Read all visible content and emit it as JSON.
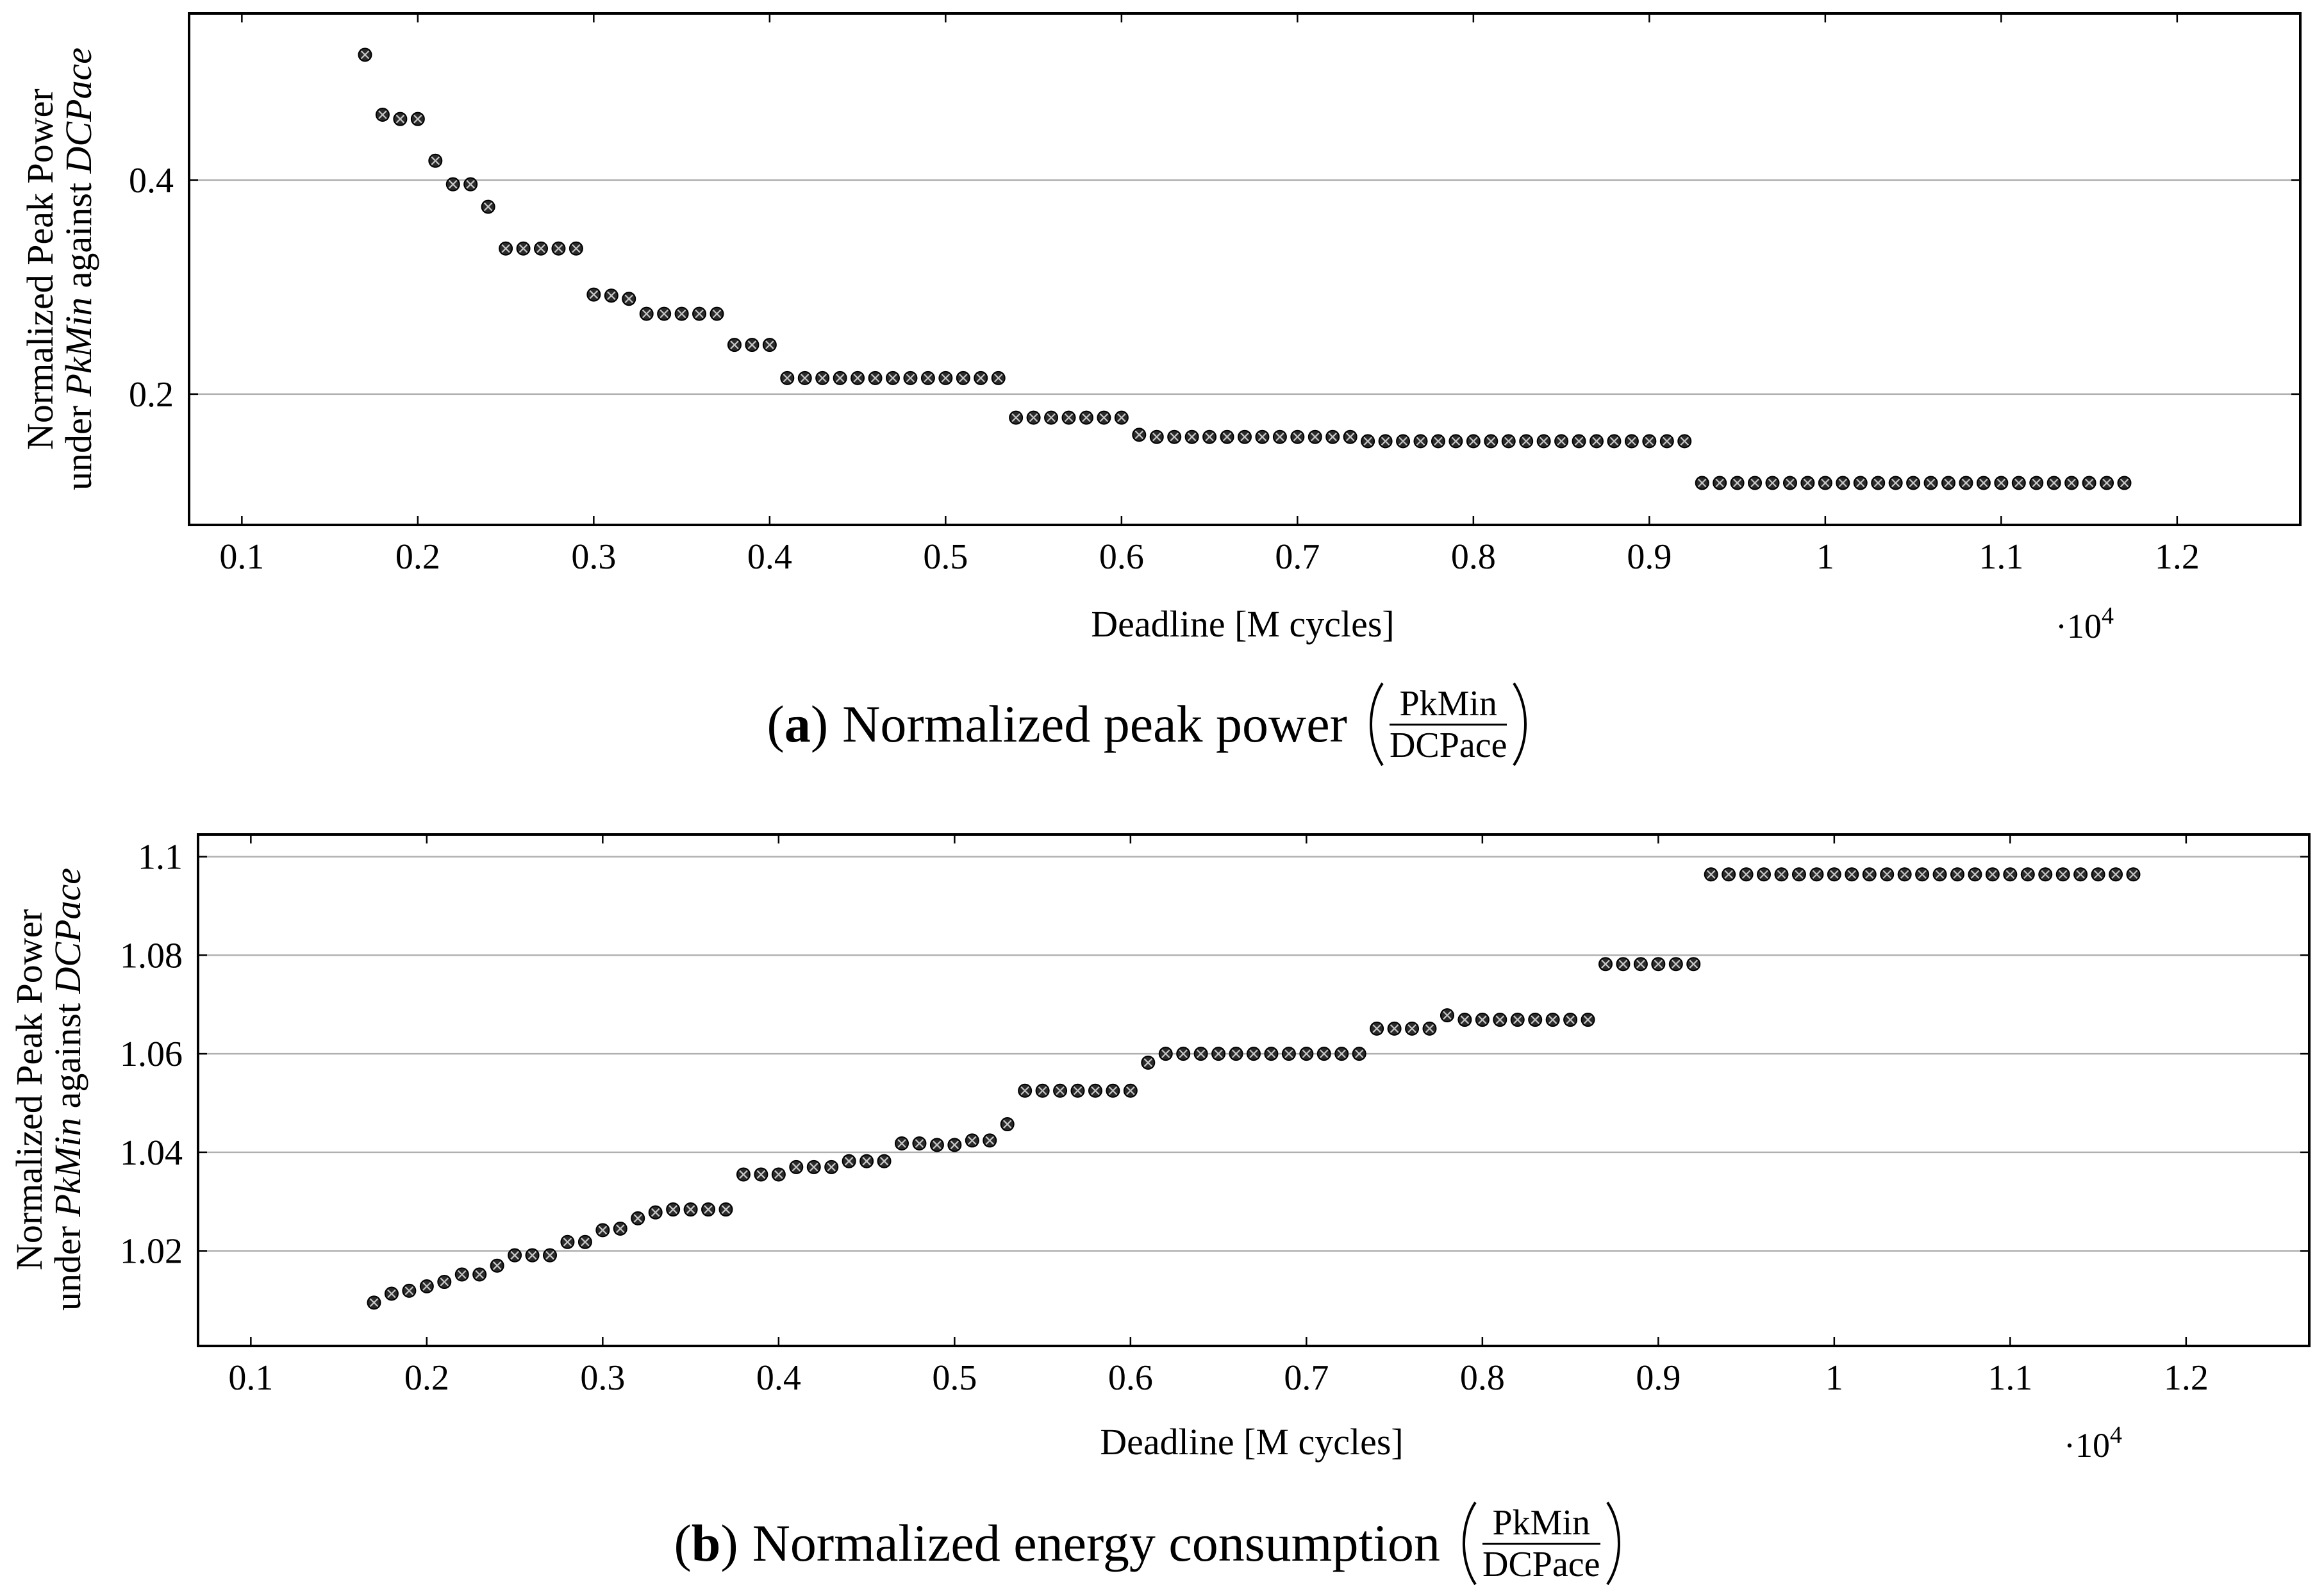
{
  "chart_data": [
    {
      "type": "scatter",
      "caption": {
        "tag_open": "(",
        "tag": "a",
        "tag_close": ")",
        "text": "Normalized peak power",
        "numerator": "PkMin",
        "denominator": "DCPace"
      },
      "xlabel": "Deadline [M cycles]",
      "x_multiplier": {
        "base": "·10",
        "exponent": "4"
      },
      "ylabel": {
        "line1": "Normalized Peak Power",
        "line2_start": "under ",
        "line2_term1": "PkMin",
        "line2_mid": " against ",
        "line2_term2": "DCPace"
      },
      "xlim": [
        0.07,
        1.27
      ],
      "ylim": [
        0.0778,
        0.5556
      ],
      "x_ticks": [
        0.1,
        0.2,
        0.3,
        0.4,
        0.5,
        0.6,
        0.7,
        0.8,
        0.9,
        1,
        1.1,
        1.2
      ],
      "x_tick_labels": [
        "0.1",
        "0.2",
        "0.3",
        "0.4",
        "0.5",
        "0.6",
        "0.7",
        "0.8",
        "0.9",
        "1",
        "1.1",
        "1.2"
      ],
      "y_ticks": [
        0.2,
        0.4
      ],
      "y_tick_labels": [
        "0.2",
        "0.4"
      ],
      "ygrid": true,
      "colors": {
        "marker": "#2a2a2a",
        "marker_cross": "#c8c8c8",
        "grid": "#b0b0b0",
        "frame": "#000000"
      },
      "x": [
        0.17,
        0.18,
        0.19,
        0.2,
        0.21,
        0.22,
        0.23,
        0.24,
        0.25,
        0.26,
        0.27,
        0.28,
        0.29,
        0.3,
        0.31,
        0.32,
        0.33,
        0.34,
        0.35,
        0.36,
        0.37,
        0.38,
        0.39,
        0.4,
        0.41,
        0.42,
        0.43,
        0.44,
        0.45,
        0.46,
        0.47,
        0.48,
        0.49,
        0.5,
        0.51,
        0.52,
        0.53,
        0.54,
        0.55,
        0.56,
        0.57,
        0.58,
        0.59,
        0.6,
        0.61,
        0.62,
        0.63,
        0.64,
        0.65,
        0.66,
        0.67,
        0.68,
        0.69,
        0.7,
        0.71,
        0.72,
        0.73,
        0.74,
        0.75,
        0.76,
        0.77,
        0.78,
        0.79,
        0.8,
        0.81,
        0.82,
        0.83,
        0.84,
        0.85,
        0.86,
        0.87,
        0.88,
        0.89,
        0.9,
        0.91,
        0.92,
        0.93,
        0.94,
        0.95,
        0.96,
        0.97,
        0.98,
        0.99,
        1,
        1.01,
        1.02,
        1.03,
        1.04,
        1.05,
        1.06,
        1.07,
        1.08,
        1.09,
        1.1,
        1.11,
        1.12,
        1.13,
        1.14,
        1.15,
        1.16,
        1.17
      ],
      "y": [
        0.517,
        0.461,
        0.457,
        0.457,
        0.418,
        0.396,
        0.396,
        0.375,
        0.336,
        0.336,
        0.336,
        0.336,
        0.336,
        0.293,
        0.292,
        0.289,
        0.275,
        0.275,
        0.275,
        0.275,
        0.275,
        0.246,
        0.246,
        0.246,
        0.215,
        0.215,
        0.215,
        0.215,
        0.215,
        0.215,
        0.215,
        0.215,
        0.215,
        0.215,
        0.215,
        0.215,
        0.215,
        0.178,
        0.178,
        0.178,
        0.178,
        0.178,
        0.178,
        0.178,
        0.162,
        0.16,
        0.16,
        0.16,
        0.16,
        0.16,
        0.16,
        0.16,
        0.16,
        0.16,
        0.16,
        0.16,
        0.16,
        0.156,
        0.156,
        0.156,
        0.156,
        0.156,
        0.156,
        0.156,
        0.156,
        0.156,
        0.156,
        0.156,
        0.156,
        0.156,
        0.156,
        0.156,
        0.156,
        0.156,
        0.156,
        0.156,
        0.117,
        0.117,
        0.117,
        0.117,
        0.117,
        0.117,
        0.117,
        0.117,
        0.117,
        0.117,
        0.117,
        0.117,
        0.117,
        0.117,
        0.117,
        0.117,
        0.117,
        0.117,
        0.117,
        0.117,
        0.117,
        0.117,
        0.117,
        0.117,
        0.117
      ]
    },
    {
      "type": "scatter",
      "caption": {
        "tag_open": "(",
        "tag": "b",
        "tag_close": ")",
        "text": "Normalized energy consumption",
        "numerator": "PkMin",
        "denominator": "DCPace"
      },
      "xlabel": "Deadline [M cycles]",
      "x_multiplier": {
        "base": "·10",
        "exponent": "4"
      },
      "ylabel": {
        "line1": "Normalized Peak Power",
        "line2_start": "under ",
        "line2_term1": "PkMin",
        "line2_mid": " against ",
        "line2_term2": "DCPace"
      },
      "xlim": [
        0.07,
        1.27
      ],
      "ylim": [
        1.0007,
        1.1045
      ],
      "x_ticks": [
        0.1,
        0.2,
        0.3,
        0.4,
        0.5,
        0.6,
        0.7,
        0.8,
        0.9,
        1,
        1.1,
        1.2
      ],
      "x_tick_labels": [
        "0.1",
        "0.2",
        "0.3",
        "0.4",
        "0.5",
        "0.6",
        "0.7",
        "0.8",
        "0.9",
        "1",
        "1.1",
        "1.2"
      ],
      "y_ticks": [
        1.02,
        1.04,
        1.06,
        1.08,
        1.1
      ],
      "y_tick_labels": [
        "1.02",
        "1.04",
        "1.06",
        "1.08",
        "1.1"
      ],
      "ygrid": true,
      "colors": {
        "marker": "#2a2a2a",
        "marker_cross": "#c8c8c8",
        "grid": "#b0b0b0",
        "frame": "#000000"
      },
      "x": [
        0.17,
        0.18,
        0.19,
        0.2,
        0.21,
        0.22,
        0.23,
        0.24,
        0.25,
        0.26,
        0.27,
        0.28,
        0.29,
        0.3,
        0.31,
        0.32,
        0.33,
        0.34,
        0.35,
        0.36,
        0.37,
        0.38,
        0.39,
        0.4,
        0.41,
        0.42,
        0.43,
        0.44,
        0.45,
        0.46,
        0.47,
        0.48,
        0.49,
        0.5,
        0.51,
        0.52,
        0.53,
        0.54,
        0.55,
        0.56,
        0.57,
        0.58,
        0.59,
        0.6,
        0.61,
        0.62,
        0.63,
        0.64,
        0.65,
        0.66,
        0.67,
        0.68,
        0.69,
        0.7,
        0.71,
        0.72,
        0.73,
        0.74,
        0.75,
        0.76,
        0.77,
        0.78,
        0.79,
        0.8,
        0.81,
        0.82,
        0.83,
        0.84,
        0.85,
        0.86,
        0.87,
        0.88,
        0.89,
        0.9,
        0.91,
        0.92,
        0.93,
        0.94,
        0.95,
        0.96,
        0.97,
        0.98,
        0.99,
        1,
        1.01,
        1.02,
        1.03,
        1.04,
        1.05,
        1.06,
        1.07,
        1.08,
        1.09,
        1.1,
        1.11,
        1.12,
        1.13,
        1.14,
        1.15,
        1.16,
        1.17
      ],
      "y": [
        1.0095,
        1.0113,
        1.0119,
        1.0128,
        1.0137,
        1.0152,
        1.0152,
        1.017,
        1.0191,
        1.0191,
        1.0191,
        1.0218,
        1.0218,
        1.0242,
        1.0245,
        1.0266,
        1.0278,
        1.0284,
        1.0284,
        1.0284,
        1.0284,
        1.0355,
        1.0355,
        1.0355,
        1.037,
        1.037,
        1.037,
        1.0382,
        1.0382,
        1.0382,
        1.0418,
        1.0418,
        1.0415,
        1.0415,
        1.0424,
        1.0424,
        1.0457,
        1.0525,
        1.0525,
        1.0525,
        1.0525,
        1.0525,
        1.0525,
        1.0525,
        1.0582,
        1.06,
        1.06,
        1.06,
        1.06,
        1.06,
        1.06,
        1.06,
        1.06,
        1.06,
        1.06,
        1.06,
        1.06,
        1.0651,
        1.0651,
        1.0651,
        1.0651,
        1.0678,
        1.0669,
        1.0669,
        1.0669,
        1.0669,
        1.0669,
        1.0669,
        1.0669,
        1.0669,
        1.0782,
        1.0782,
        1.0782,
        1.0782,
        1.0782,
        1.0782,
        1.0964,
        1.0964,
        1.0964,
        1.0964,
        1.0964,
        1.0964,
        1.0964,
        1.0964,
        1.0964,
        1.0964,
        1.0964,
        1.0964,
        1.0964,
        1.0964,
        1.0964,
        1.0964,
        1.0964,
        1.0964,
        1.0964,
        1.0964,
        1.0964,
        1.0964,
        1.0964,
        1.0964,
        1.0964
      ]
    }
  ]
}
